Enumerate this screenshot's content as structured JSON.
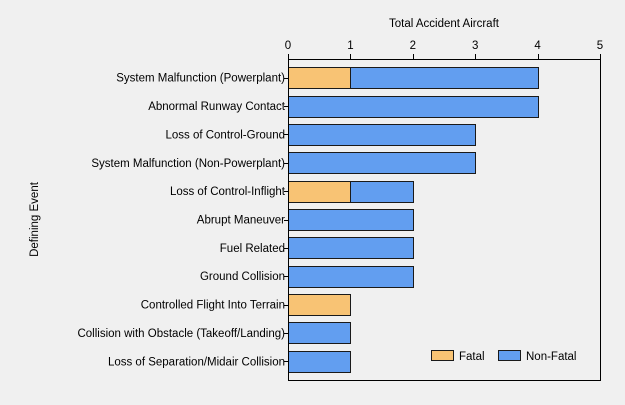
{
  "chart_data": {
    "type": "bar",
    "orientation": "horizontal",
    "stacked": true,
    "title": "",
    "xlabel": "Total Accident Aircraft",
    "ylabel": "Defining Event",
    "xlim": [
      0,
      5
    ],
    "x_ticks": [
      "0",
      "1",
      "2",
      "3",
      "4",
      "5"
    ],
    "x_axis_position": "top",
    "grid": false,
    "legend_position": "bottom-right",
    "categories": [
      "System Malfunction (Powerplant)",
      "Abnormal Runway Contact",
      "Loss of Control-Ground",
      "System Malfunction (Non-Powerplant)",
      "Loss of Control-Inflight",
      "Abrupt Maneuver",
      "Fuel Related",
      "Ground Collision",
      "Controlled Flight Into Terrain",
      "Collision with Obstacle (Takeoff/Landing)",
      "Loss of Separation/Midair Collision"
    ],
    "series": [
      {
        "name": "Fatal",
        "color": "#f8c374",
        "values": [
          1,
          0,
          0,
          0,
          1,
          0,
          0,
          0,
          1,
          0,
          0
        ]
      },
      {
        "name": "Non-Fatal",
        "color": "#629ef0",
        "values": [
          3,
          4,
          3,
          3,
          1,
          2,
          2,
          2,
          0,
          1,
          1
        ]
      }
    ]
  }
}
